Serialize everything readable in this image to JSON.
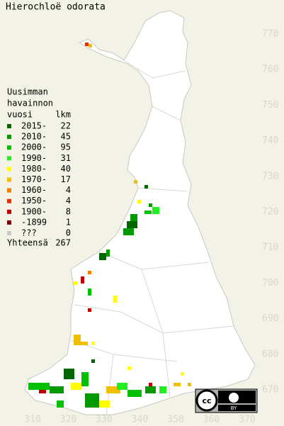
{
  "title": "Hierochloë odorata",
  "legend": {
    "header": [
      "Uusimman",
      "havainnon",
      "vuosi"
    ],
    "count_header": "lkm",
    "rows": [
      {
        "label": "2015-",
        "count": 22,
        "color": "#006600"
      },
      {
        "label": "2010-",
        "count": 45,
        "color": "#009900"
      },
      {
        "label": "2000-",
        "count": 95,
        "color": "#00c000"
      },
      {
        "label": "1990-",
        "count": 31,
        "color": "#22ee22"
      },
      {
        "label": "1980-",
        "count": 40,
        "color": "#ffff00"
      },
      {
        "label": "1970-",
        "count": 17,
        "color": "#f0c000"
      },
      {
        "label": "1960-",
        "count": 4,
        "color": "#f08000"
      },
      {
        "label": "1950-",
        "count": 4,
        "color": "#e03000"
      },
      {
        "label": "1900-",
        "count": 8,
        "color": "#c00000"
      },
      {
        "label": "-1899",
        "count": 1,
        "color": "#800000"
      },
      {
        "label": "???",
        "count": 0,
        "color": "#c8c8c8"
      }
    ],
    "total_label": "Yhteensä",
    "total": 267
  },
  "x_axis": [
    310,
    320,
    330,
    340,
    350,
    360,
    370
  ],
  "y_axis": [
    670,
    680,
    690,
    700,
    710,
    720,
    730,
    740,
    750,
    760,
    770
  ],
  "license_badge": "BY"
}
